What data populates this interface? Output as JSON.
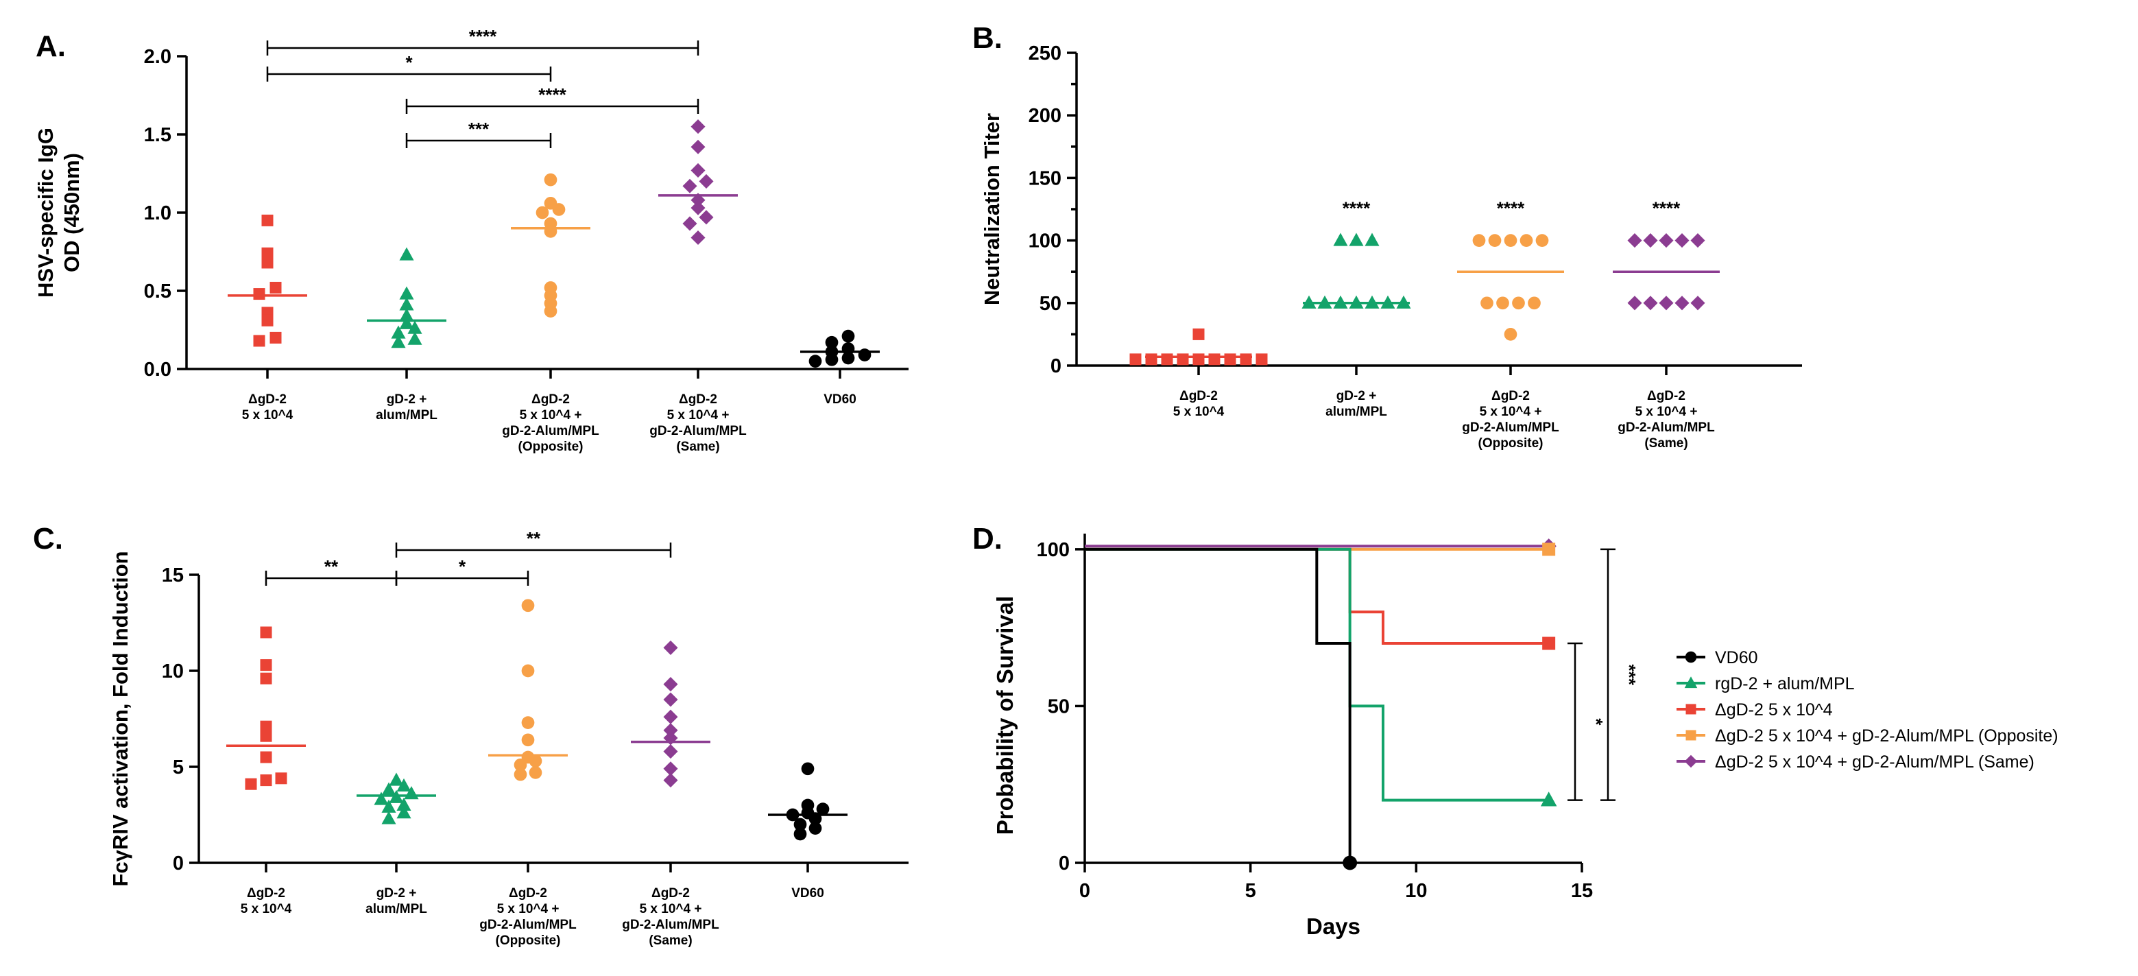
{
  "colors": {
    "red": "#EA4335",
    "green": "#13A36A",
    "orange": "#F7A047",
    "purple": "#8B3C91",
    "black": "#000000"
  },
  "chart_data": [
    {
      "panel": "A.",
      "type": "scatter",
      "ylabel": [
        "HSV-specific IgG",
        "OD (450nm)"
      ],
      "ylim": [
        0,
        2.0
      ],
      "yticks": [
        0.0,
        0.5,
        1.0,
        1.5,
        2.0
      ],
      "ytick_labels": [
        "0.0",
        "0.5",
        "1.0",
        "1.5",
        "2.0"
      ],
      "categories": [
        {
          "lines": [
            "ΔgD-2",
            "5 x 10^4"
          ],
          "color": "red",
          "marker": "square",
          "values": [
            0.95,
            0.74,
            0.68,
            0.52,
            0.48,
            0.36,
            0.31,
            0.2,
            0.18
          ],
          "mean": 0.47
        },
        {
          "lines": [
            "gD-2 +",
            "alum/MPL"
          ],
          "color": "green",
          "marker": "triangle",
          "values": [
            0.73,
            0.48,
            0.41,
            0.34,
            0.29,
            0.26,
            0.23,
            0.19,
            0.17
          ],
          "mean": 0.31
        },
        {
          "lines": [
            "ΔgD-2",
            "5 x 10^4 +",
            "gD-2-Alum/MPL",
            "(Opposite)"
          ],
          "color": "orange",
          "marker": "circle",
          "values": [
            1.21,
            1.06,
            1.02,
            1.0,
            0.93,
            0.88,
            0.52,
            0.47,
            0.42,
            0.37
          ],
          "mean": 0.9
        },
        {
          "lines": [
            "ΔgD-2",
            "5 x 10^4 +",
            "gD-2-Alum/MPL",
            "(Same)"
          ],
          "color": "purple",
          "marker": "diamond",
          "values": [
            1.55,
            1.42,
            1.27,
            1.2,
            1.17,
            1.08,
            1.03,
            0.97,
            0.93,
            0.84
          ],
          "mean": 1.11
        },
        {
          "lines": [
            "VD60"
          ],
          "color": "black",
          "marker": "circle",
          "values": [
            0.21,
            0.17,
            0.13,
            0.11,
            0.09,
            0.07,
            0.06,
            0.05
          ],
          "mean": 0.11
        }
      ],
      "significance": [
        {
          "from": 0,
          "to": 3,
          "label": "****"
        },
        {
          "from": 0,
          "to": 2,
          "label": "*"
        },
        {
          "from": 1,
          "to": 3,
          "label": "****"
        },
        {
          "from": 1,
          "to": 2,
          "label": "***"
        }
      ]
    },
    {
      "panel": "B.",
      "type": "scatter",
      "ylabel": [
        "Neutralization Titer"
      ],
      "ylim": [
        0,
        250
      ],
      "yticks": [
        0,
        50,
        100,
        150,
        200,
        250
      ],
      "ytick_labels": [
        "0",
        "50",
        "100",
        "150",
        "200",
        "250"
      ],
      "categories": [
        {
          "lines": [
            "ΔgD-2",
            "5 x 10^4"
          ],
          "color": "red",
          "marker": "square",
          "values": [
            25,
            5,
            5,
            5,
            5,
            5,
            5,
            5,
            5,
            5
          ],
          "mean": 7,
          "star": ""
        },
        {
          "lines": [
            "gD-2 +",
            "alum/MPL"
          ],
          "color": "green",
          "marker": "triangle",
          "values": [
            100,
            100,
            100,
            50,
            50,
            50,
            50,
            50,
            50,
            50
          ],
          "mean": 50,
          "star": "****"
        },
        {
          "lines": [
            "ΔgD-2",
            "5 x 10^4 +",
            "gD-2-Alum/MPL",
            "(Opposite)"
          ],
          "color": "orange",
          "marker": "circle",
          "values": [
            100,
            100,
            100,
            100,
            100,
            50,
            50,
            50,
            50,
            25
          ],
          "mean": 75,
          "star": "****"
        },
        {
          "lines": [
            "ΔgD-2",
            "5 x 10^4 +",
            "gD-2-Alum/MPL",
            "(Same)"
          ],
          "color": "purple",
          "marker": "diamond",
          "values": [
            100,
            100,
            100,
            100,
            100,
            50,
            50,
            50,
            50,
            50
          ],
          "mean": 75,
          "star": "****"
        }
      ]
    },
    {
      "panel": "C.",
      "type": "scatter",
      "ylabel": [
        "FcγRIV activation, Fold Induction"
      ],
      "ylim": [
        0,
        15
      ],
      "yticks": [
        0,
        5,
        10,
        15
      ],
      "ytick_labels": [
        "0",
        "5",
        "10",
        "15"
      ],
      "categories": [
        {
          "lines": [
            "ΔgD-2",
            "5 x 10^4"
          ],
          "color": "red",
          "marker": "square",
          "values": [
            12.0,
            10.3,
            9.6,
            7.1,
            6.6,
            5.5,
            4.4,
            4.3,
            4.1
          ],
          "mean": 6.1
        },
        {
          "lines": [
            "gD-2 +",
            "alum/MPL"
          ],
          "color": "green",
          "marker": "triangle",
          "values": [
            4.3,
            4.0,
            3.8,
            3.6,
            3.4,
            3.3,
            3.0,
            2.9,
            2.6,
            2.3
          ],
          "mean": 3.5
        },
        {
          "lines": [
            "ΔgD-2",
            "5 x 10^4 +",
            "gD-2-Alum/MPL",
            "(Opposite)"
          ],
          "color": "orange",
          "marker": "circle",
          "values": [
            13.4,
            10.0,
            7.3,
            6.4,
            5.5,
            5.3,
            5.1,
            4.7,
            4.6
          ],
          "mean": 5.6
        },
        {
          "lines": [
            "ΔgD-2",
            "5 x 10^4 +",
            "gD-2-Alum/MPL",
            "(Same)"
          ],
          "color": "purple",
          "marker": "diamond",
          "values": [
            11.2,
            9.3,
            8.5,
            7.6,
            6.9,
            6.5,
            5.8,
            4.9,
            4.3
          ],
          "mean": 6.3
        },
        {
          "lines": [
            "VD60"
          ],
          "color": "black",
          "marker": "circle",
          "values": [
            4.9,
            3.0,
            2.8,
            2.6,
            2.5,
            2.3,
            2.0,
            1.8,
            1.5
          ],
          "mean": 2.5
        }
      ],
      "significance": [
        {
          "from": 1,
          "to": 3,
          "label": "**"
        },
        {
          "from": 0,
          "to": 1,
          "label": "**"
        },
        {
          "from": 1,
          "to": 2,
          "label": "*"
        }
      ]
    },
    {
      "panel": "D.",
      "type": "line",
      "subtype": "kaplan-meier",
      "xlabel": "Days",
      "ylabel": "Probability of Survival",
      "xlim": [
        0,
        15
      ],
      "ylim": [
        0,
        100
      ],
      "xticks": [
        0,
        5,
        10,
        15
      ],
      "xtick_labels": [
        "0",
        "5",
        "10",
        "15"
      ],
      "yticks": [
        0,
        50,
        100
      ],
      "ytick_labels": [
        "0",
        "50",
        "100"
      ],
      "series": [
        {
          "name": "VD60",
          "color": "black",
          "marker": "circle",
          "steps": [
            [
              0,
              100
            ],
            [
              7,
              100
            ],
            [
              7,
              70
            ],
            [
              8,
              70
            ],
            [
              8,
              0
            ]
          ],
          "end": [
            8,
            0
          ]
        },
        {
          "name": "rgD-2 + alum/MPL",
          "color": "green",
          "marker": "triangle",
          "steps": [
            [
              0,
              100
            ],
            [
              8,
              100
            ],
            [
              8,
              50
            ],
            [
              9,
              50
            ],
            [
              9,
              20
            ],
            [
              14,
              20
            ]
          ],
          "end": [
            14,
            20
          ]
        },
        {
          "name": "ΔgD-2 5 x 10^4",
          "color": "red",
          "marker": "square",
          "steps": [
            [
              0,
              100
            ],
            [
              8,
              100
            ],
            [
              8,
              80
            ],
            [
              9,
              80
            ],
            [
              9,
              70
            ],
            [
              14,
              70
            ]
          ],
          "end": [
            14,
            70
          ]
        },
        {
          "name": "ΔgD-2 5 x 10^4 + gD-2-Alum/MPL (Opposite)",
          "color": "orange",
          "marker": "square",
          "steps": [
            [
              0,
              100
            ],
            [
              14,
              100
            ]
          ],
          "end": [
            14,
            100
          ]
        },
        {
          "name": "ΔgD-2 5 x 10^4 + gD-2-Alum/MPL (Same)",
          "color": "purple",
          "marker": "diamond",
          "steps": [
            [
              0,
              101
            ],
            [
              14,
              101
            ]
          ],
          "end": [
            14,
            101
          ]
        }
      ],
      "significance": [
        {
          "from_y": 70,
          "to_y": 20,
          "label": "*"
        },
        {
          "from_y": 100,
          "to_y": 20,
          "label": "***"
        }
      ]
    }
  ]
}
